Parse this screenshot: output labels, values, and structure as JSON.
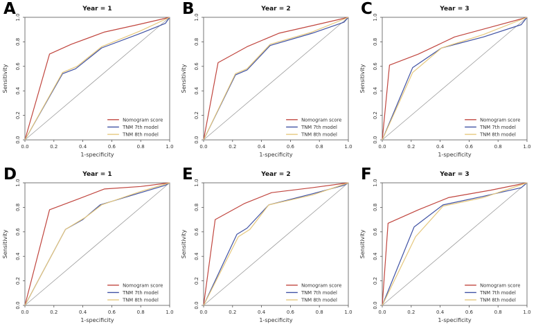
{
  "figure": {
    "background": "#ffffff",
    "description": "Six-panel ROC curve figure comparing nomogram and TNM staging models at 1, 2 and 3 years"
  },
  "axes": {
    "xlabel": "1-specificity",
    "ylabel": "Sensitivity",
    "tick_values": [
      0,
      0.2,
      0.4,
      0.6,
      0.8,
      1.0
    ],
    "tick_labels": [
      "0.0",
      "0.2",
      "0.4",
      "0.6",
      "0.8",
      "1.0"
    ],
    "xlim": [
      0,
      1
    ],
    "ylim": [
      0,
      1
    ]
  },
  "legend": {
    "position": "bottom-right",
    "entries": [
      {
        "label": "Nomogram score",
        "color": "#c0453e"
      },
      {
        "label": "TNM 7th model",
        "color": "#3f51a3"
      },
      {
        "label": "TNM 8th model",
        "color": "#e5c77c"
      }
    ]
  },
  "colors": {
    "diagonal": "#9a9a9a",
    "box": "#555555",
    "text": "#333333",
    "title": "#111111"
  },
  "chart_data": [
    {
      "panel_label": "A",
      "type": "line",
      "title": "Year = 1",
      "xlabel": "1-specificity",
      "ylabel": "Sensitivity",
      "xlim": [
        0,
        1
      ],
      "ylim": [
        0,
        1
      ],
      "diagonal_reference": true,
      "legend_position": "bottom-right",
      "series": [
        {
          "name": "Nomogram score",
          "color": "#c0453e",
          "points": [
            [
              0,
              0
            ],
            [
              0.17,
              0.7
            ],
            [
              0.32,
              0.78
            ],
            [
              0.55,
              0.88
            ],
            [
              0.78,
              0.94
            ],
            [
              1,
              1
            ]
          ]
        },
        {
          "name": "TNM 7th model",
          "color": "#3f51a3",
          "points": [
            [
              0,
              0
            ],
            [
              0.26,
              0.54
            ],
            [
              0.35,
              0.58
            ],
            [
              0.53,
              0.75
            ],
            [
              0.8,
              0.87
            ],
            [
              0.97,
              0.95
            ],
            [
              1,
              1
            ]
          ]
        },
        {
          "name": "TNM 8th model",
          "color": "#e5c77c",
          "points": [
            [
              0,
              0
            ],
            [
              0.26,
              0.55
            ],
            [
              0.36,
              0.6
            ],
            [
              0.53,
              0.76
            ],
            [
              0.8,
              0.89
            ],
            [
              1,
              1
            ]
          ]
        }
      ]
    },
    {
      "panel_label": "B",
      "type": "line",
      "title": "Year = 2",
      "xlabel": "1-specificity",
      "ylabel": "Sensitivity",
      "xlim": [
        0,
        1
      ],
      "ylim": [
        0,
        1
      ],
      "diagonal_reference": true,
      "legend_position": "bottom-right",
      "series": [
        {
          "name": "Nomogram score",
          "color": "#c0453e",
          "points": [
            [
              0,
              0
            ],
            [
              0.1,
              0.63
            ],
            [
              0.3,
              0.76
            ],
            [
              0.52,
              0.87
            ],
            [
              0.78,
              0.94
            ],
            [
              1,
              1
            ]
          ]
        },
        {
          "name": "TNM 7th model",
          "color": "#3f51a3",
          "points": [
            [
              0,
              0
            ],
            [
              0.22,
              0.53
            ],
            [
              0.3,
              0.57
            ],
            [
              0.46,
              0.77
            ],
            [
              0.75,
              0.87
            ],
            [
              0.97,
              0.96
            ],
            [
              1,
              1
            ]
          ]
        },
        {
          "name": "TNM 8th model",
          "color": "#e5c77c",
          "points": [
            [
              0,
              0
            ],
            [
              0.22,
              0.54
            ],
            [
              0.3,
              0.58
            ],
            [
              0.46,
              0.78
            ],
            [
              0.75,
              0.88
            ],
            [
              1,
              1
            ]
          ]
        }
      ]
    },
    {
      "panel_label": "C",
      "type": "line",
      "title": "Year = 3",
      "xlabel": "1-specificity",
      "ylabel": "Sensitivity",
      "xlim": [
        0,
        1
      ],
      "ylim": [
        0,
        1
      ],
      "diagonal_reference": true,
      "legend_position": "bottom-right",
      "series": [
        {
          "name": "Nomogram score",
          "color": "#c0453e",
          "points": [
            [
              0,
              0
            ],
            [
              0.05,
              0.61
            ],
            [
              0.25,
              0.7
            ],
            [
              0.5,
              0.84
            ],
            [
              0.75,
              0.92
            ],
            [
              1,
              1
            ]
          ]
        },
        {
          "name": "TNM 7th model",
          "color": "#3f51a3",
          "points": [
            [
              0,
              0
            ],
            [
              0.21,
              0.59
            ],
            [
              0.41,
              0.75
            ],
            [
              0.7,
              0.84
            ],
            [
              0.96,
              0.94
            ],
            [
              1,
              1
            ]
          ]
        },
        {
          "name": "TNM 8th model",
          "color": "#e5c77c",
          "points": [
            [
              0,
              0
            ],
            [
              0.21,
              0.55
            ],
            [
              0.41,
              0.75
            ],
            [
              0.7,
              0.86
            ],
            [
              1,
              1
            ]
          ]
        }
      ]
    },
    {
      "panel_label": "D",
      "type": "line",
      "title": "Year = 1",
      "xlabel": "1-specificity",
      "ylabel": "Sensitivity",
      "xlim": [
        0,
        1
      ],
      "ylim": [
        0,
        1
      ],
      "diagonal_reference": true,
      "legend_position": "bottom-right",
      "series": [
        {
          "name": "Nomogram score",
          "color": "#c0453e",
          "points": [
            [
              0,
              0
            ],
            [
              0.17,
              0.78
            ],
            [
              0.35,
              0.86
            ],
            [
              0.55,
              0.95
            ],
            [
              0.8,
              0.97
            ],
            [
              1,
              1
            ]
          ]
        },
        {
          "name": "TNM 7th model",
          "color": "#3f51a3",
          "points": [
            [
              0,
              0
            ],
            [
              0.28,
              0.62
            ],
            [
              0.4,
              0.7
            ],
            [
              0.52,
              0.82
            ],
            [
              0.8,
              0.92
            ],
            [
              0.97,
              0.98
            ],
            [
              1,
              1
            ]
          ]
        },
        {
          "name": "TNM 8th model",
          "color": "#e5c77c",
          "points": [
            [
              0,
              0
            ],
            [
              0.28,
              0.62
            ],
            [
              0.42,
              0.72
            ],
            [
              0.53,
              0.82
            ],
            [
              0.8,
              0.93
            ],
            [
              1,
              1
            ]
          ]
        }
      ]
    },
    {
      "panel_label": "E",
      "type": "line",
      "title": "Year = 2",
      "xlabel": "1-specificity",
      "ylabel": "Sensitivity",
      "xlim": [
        0,
        1
      ],
      "ylim": [
        0,
        1
      ],
      "diagonal_reference": true,
      "legend_position": "bottom-right",
      "series": [
        {
          "name": "Nomogram score",
          "color": "#c0453e",
          "points": [
            [
              0,
              0
            ],
            [
              0.08,
              0.7
            ],
            [
              0.28,
              0.83
            ],
            [
              0.47,
              0.92
            ],
            [
              0.75,
              0.96
            ],
            [
              1,
              1
            ]
          ]
        },
        {
          "name": "TNM 7th model",
          "color": "#3f51a3",
          "points": [
            [
              0,
              0
            ],
            [
              0.23,
              0.58
            ],
            [
              0.3,
              0.63
            ],
            [
              0.45,
              0.82
            ],
            [
              0.75,
              0.91
            ],
            [
              0.97,
              0.98
            ],
            [
              1,
              1
            ]
          ]
        },
        {
          "name": "TNM 8th model",
          "color": "#e5c77c",
          "points": [
            [
              0,
              0
            ],
            [
              0.24,
              0.56
            ],
            [
              0.32,
              0.62
            ],
            [
              0.45,
              0.82
            ],
            [
              0.75,
              0.9
            ],
            [
              1,
              1
            ]
          ]
        }
      ]
    },
    {
      "panel_label": "F",
      "type": "line",
      "title": "Year = 3",
      "xlabel": "1-specificity",
      "ylabel": "Sensitivity",
      "xlim": [
        0,
        1
      ],
      "ylim": [
        0,
        1
      ],
      "diagonal_reference": true,
      "legend_position": "bottom-right",
      "series": [
        {
          "name": "Nomogram score",
          "color": "#c0453e",
          "points": [
            [
              0,
              0
            ],
            [
              0.04,
              0.67
            ],
            [
              0.25,
              0.78
            ],
            [
              0.46,
              0.88
            ],
            [
              0.75,
              0.94
            ],
            [
              1,
              1
            ]
          ]
        },
        {
          "name": "TNM 7th model",
          "color": "#3f51a3",
          "points": [
            [
              0,
              0
            ],
            [
              0.22,
              0.64
            ],
            [
              0.42,
              0.82
            ],
            [
              0.7,
              0.89
            ],
            [
              0.96,
              0.96
            ],
            [
              1,
              1
            ]
          ]
        },
        {
          "name": "TNM 8th model",
          "color": "#e5c77c",
          "points": [
            [
              0,
              0
            ],
            [
              0.23,
              0.56
            ],
            [
              0.42,
              0.81
            ],
            [
              0.7,
              0.88
            ],
            [
              1,
              1
            ]
          ]
        }
      ]
    }
  ]
}
